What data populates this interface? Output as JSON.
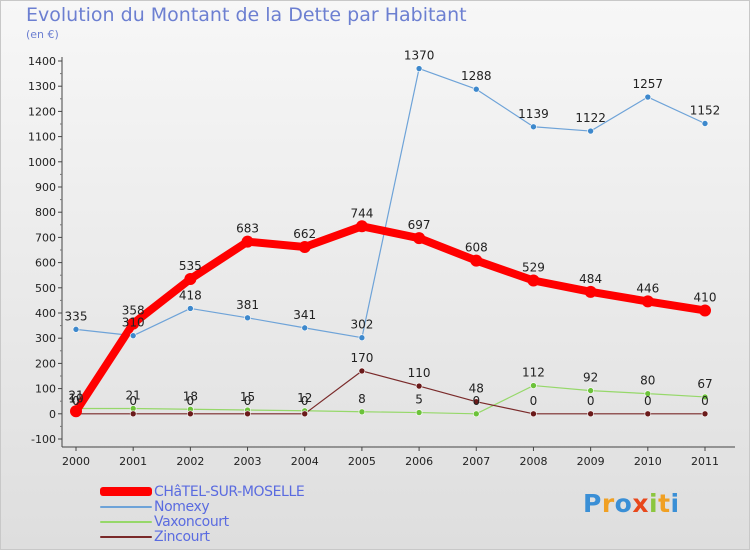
{
  "title": "Evolution du Montant de la Dette par Habitant",
  "subtitle": "(en €)",
  "logo": {
    "text": "Proxiti",
    "letters": [
      {
        "ch": "P",
        "color": "#3a8fd6"
      },
      {
        "ch": "r",
        "color": "#f0a023"
      },
      {
        "ch": "o",
        "color": "#3a8fd6"
      },
      {
        "ch": "x",
        "color": "#e8481c"
      },
      {
        "ch": "i",
        "color": "#8cc63f"
      },
      {
        "ch": "t",
        "color": "#f0a023"
      },
      {
        "ch": "i",
        "color": "#3a8fd6"
      }
    ]
  },
  "chart_data": {
    "type": "line",
    "title": "Evolution du Montant de la Dette par Habitant",
    "subtitle": "(en €)",
    "x": [
      "2000",
      "2001",
      "2002",
      "2003",
      "2004",
      "2005",
      "2006",
      "2007",
      "2008",
      "2009",
      "2010",
      "2011"
    ],
    "ylim": [
      -100,
      1400
    ],
    "yticks": [
      -100,
      0,
      100,
      200,
      300,
      400,
      500,
      600,
      700,
      800,
      900,
      1000,
      1100,
      1200,
      1300,
      1400
    ],
    "grid": false,
    "legend_position": "bottom-left",
    "series": [
      {
        "name": "Nomexy",
        "color": "#6ea3d8",
        "marker": "#3d88cc",
        "width": 1.2,
        "values": [
          335,
          310,
          418,
          381,
          341,
          302,
          1370,
          1288,
          1139,
          1122,
          1257,
          1152
        ],
        "labels": [
          "335",
          "310",
          "418",
          "381",
          "341",
          "302",
          "1370",
          "1288",
          "1139",
          "1122",
          "1257",
          "1152"
        ]
      },
      {
        "name": "Vaxoncourt",
        "color": "#96d86a",
        "marker": "#6cc23a",
        "width": 1.2,
        "values": [
          21,
          21,
          18,
          15,
          12,
          8,
          5,
          0,
          112,
          92,
          80,
          67
        ],
        "labels": [
          "21",
          "21",
          "18",
          "15",
          "12",
          "8",
          "5",
          "0",
          "112",
          "92",
          "80",
          "67"
        ]
      },
      {
        "name": "Zincourt",
        "color": "#7a2a2a",
        "marker": "#6a1a1a",
        "width": 1.2,
        "values": [
          0,
          0,
          0,
          0,
          0,
          170,
          110,
          48,
          0,
          0,
          0,
          0
        ],
        "labels": [
          "0",
          "0",
          "0",
          "0",
          "0",
          "170",
          "110",
          "48",
          "0",
          "0",
          "0",
          "0"
        ]
      },
      {
        "name": "CHâTEL-SUR-MOSELLE",
        "color": "#ff0000",
        "marker": "#ff0000",
        "width": 8,
        "values": [
          10,
          358,
          535,
          683,
          662,
          744,
          697,
          608,
          529,
          484,
          446,
          410
        ],
        "labels": [
          "10",
          "358",
          "535",
          "683",
          "662",
          "744",
          "697",
          "608",
          "529",
          "484",
          "446",
          "410"
        ]
      }
    ],
    "legend": [
      {
        "name": "CHâTEL-SUR-MOSELLE",
        "color": "#ff0000"
      },
      {
        "name": "Nomexy",
        "color": "#6ea3d8"
      },
      {
        "name": "Vaxoncourt",
        "color": "#96d86a"
      },
      {
        "name": "Zincourt",
        "color": "#7a2a2a"
      }
    ]
  }
}
